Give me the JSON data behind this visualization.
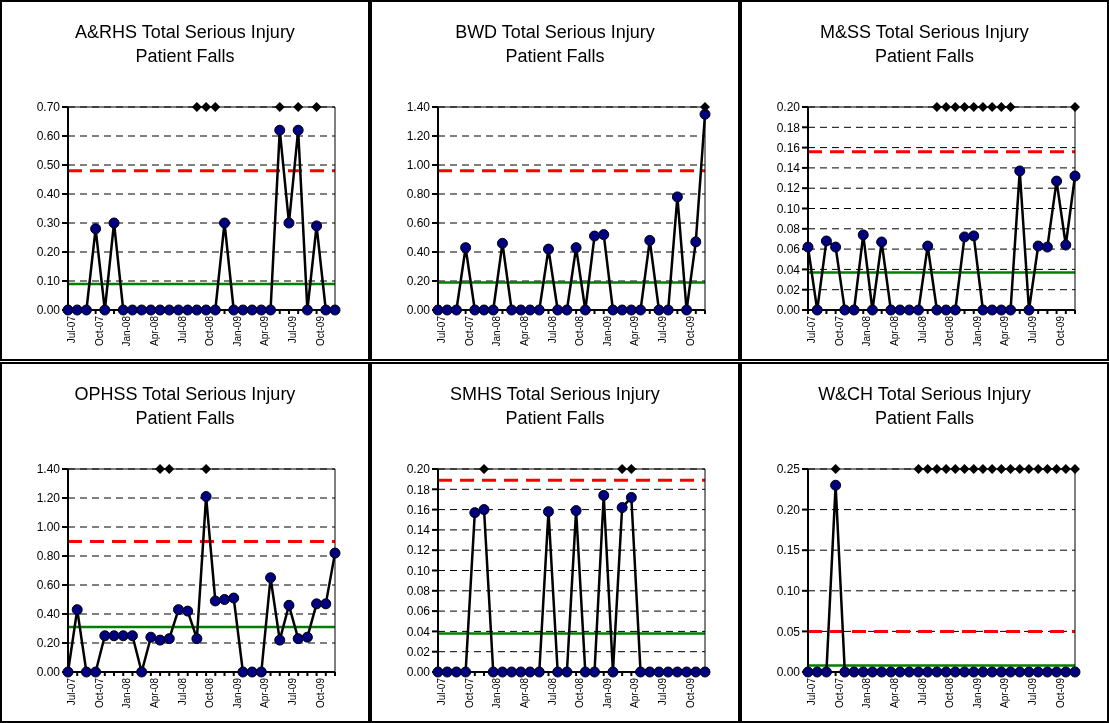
{
  "chart_data": [
    {
      "type": "line",
      "title": "A&RHS Total Serious Injury Patient Falls",
      "categories": [
        "Jul-07",
        null,
        null,
        "Oct-07",
        null,
        null,
        "Jan-08",
        null,
        null,
        "Apr-08",
        null,
        null,
        "Jul-08",
        null,
        null,
        "Oct-08",
        null,
        null,
        "Jan-09",
        null,
        null,
        "Apr-09",
        null,
        null,
        "Jul-09",
        null,
        null,
        "Oct-09",
        null,
        null
      ],
      "ylim": [
        0,
        0.7
      ],
      "yticks": [
        {
          "value": 0,
          "label": "0.00"
        },
        {
          "value": 0.1,
          "label": "0.10"
        },
        {
          "value": 0.2,
          "label": "0.20"
        },
        {
          "value": 0.3,
          "label": "0.30"
        },
        {
          "value": 0.4,
          "label": "0.40"
        },
        {
          "value": 0.5,
          "label": "0.50"
        },
        {
          "value": 0.6,
          "label": "0.60"
        },
        {
          "value": 0.7,
          "label": "0.70"
        }
      ],
      "grid": "y",
      "marker": "circle",
      "line_style": "solid",
      "series": [
        {
          "color": "#000000",
          "colors": [
            "#000080",
            "#000080",
            "#000080",
            "#000080",
            "#000080",
            "#000080",
            "#000080",
            "#000080",
            "#000080",
            "#000080",
            "#000080",
            "#000080",
            "#000080",
            "#000080",
            "#000080",
            "#000080",
            "#000080",
            "#000080",
            "#000080",
            "#000080",
            "#000080",
            "#000080",
            "#000080",
            "#000080",
            "#000080",
            "#000080",
            "#000080",
            "#000080",
            "#000080",
            "#000080"
          ],
          "values": [
            0,
            0,
            0,
            0.28,
            0,
            0.3,
            0,
            0,
            0,
            0,
            0,
            0,
            0,
            0,
            0,
            0,
            0,
            0.3,
            0,
            0,
            0,
            0,
            0,
            0.62,
            0.3,
            0.62,
            0,
            0.29,
            0,
            0
          ]
        },
        {
          "type": "scatter",
          "marker": "diamond",
          "color": "#000000",
          "values": [
            null,
            null,
            null,
            null,
            null,
            null,
            null,
            null,
            null,
            null,
            null,
            null,
            null,
            null,
            0.7,
            0.7,
            0.7,
            null,
            null,
            null,
            null,
            null,
            null,
            0.7,
            null,
            0.7,
            null,
            0.7,
            null,
            null
          ]
        }
      ],
      "ref_lines": [
        {
          "axis": "y",
          "value": 0.48,
          "color": "#ff0000",
          "line_style": "dashed"
        },
        {
          "axis": "y",
          "value": 0.09,
          "color": "#008000",
          "line_style": "solid"
        }
      ]
    },
    {
      "type": "line",
      "title": "BWD Total Serious Injury Patient Falls",
      "categories": [
        "Jul-07",
        null,
        null,
        "Oct-07",
        null,
        null,
        "Jan-08",
        null,
        null,
        "Apr-08",
        null,
        null,
        "Jul-08",
        null,
        null,
        "Oct-08",
        null,
        null,
        "Jan-09",
        null,
        null,
        "Apr-09",
        null,
        null,
        "Jul-09",
        null,
        null,
        "Oct-09",
        null,
        null
      ],
      "ylim": [
        0,
        1.4
      ],
      "yticks": [
        {
          "value": 0,
          "label": "0.00"
        },
        {
          "value": 0.2,
          "label": "0.20"
        },
        {
          "value": 0.4,
          "label": "0.40"
        },
        {
          "value": 0.6,
          "label": "0.60"
        },
        {
          "value": 0.8,
          "label": "0.80"
        },
        {
          "value": 1,
          "label": "1.00"
        },
        {
          "value": 1.2,
          "label": "1.20"
        },
        {
          "value": 1.4,
          "label": "1.40"
        }
      ],
      "grid": "y",
      "marker": "circle",
      "line_style": "solid",
      "series": [
        {
          "color": "#000000",
          "colors": [
            "#000080",
            "#000080",
            "#000080",
            "#000080",
            "#000080",
            "#000080",
            "#000080",
            "#000080",
            "#000080",
            "#000080",
            "#000080",
            "#000080",
            "#000080",
            "#000080",
            "#000080",
            "#000080",
            "#000080",
            "#000080",
            "#000080",
            "#000080",
            "#000080",
            "#000080",
            "#000080",
            "#000080",
            "#000080",
            "#000080",
            "#000080",
            "#000080",
            "#000080",
            "#000080"
          ],
          "values": [
            0,
            0,
            0,
            0.43,
            0,
            0,
            0,
            0.46,
            0,
            0,
            0,
            0,
            0.42,
            0,
            0,
            0.43,
            0,
            0.51,
            0.52,
            0,
            0,
            0,
            0,
            0.48,
            0,
            0,
            0.78,
            0,
            0.47,
            1.35
          ]
        },
        {
          "type": "scatter",
          "marker": "diamond",
          "color": "#000000",
          "values": [
            null,
            null,
            null,
            null,
            null,
            null,
            null,
            null,
            null,
            null,
            null,
            null,
            null,
            null,
            null,
            null,
            null,
            null,
            null,
            null,
            null,
            null,
            null,
            null,
            null,
            null,
            null,
            null,
            null,
            1.4
          ]
        }
      ],
      "ref_lines": [
        {
          "axis": "y",
          "value": 0.96,
          "color": "#ff0000",
          "line_style": "dashed"
        },
        {
          "axis": "y",
          "value": 0.19,
          "color": "#008000",
          "line_style": "solid"
        }
      ]
    },
    {
      "type": "line",
      "title": "M&SS Total Serious Injury Patient Falls",
      "categories": [
        "Jul-07",
        null,
        null,
        "Oct-07",
        null,
        null,
        "Jan-08",
        null,
        null,
        "Apr-08",
        null,
        null,
        "Jul-08",
        null,
        null,
        "Oct-08",
        null,
        null,
        "Jan-09",
        null,
        null,
        "Apr-09",
        null,
        null,
        "Jul-09",
        null,
        null,
        "Oct-09",
        null,
        null
      ],
      "ylim": [
        0,
        0.2
      ],
      "yticks": [
        {
          "value": 0,
          "label": "0.00"
        },
        {
          "value": 0.02,
          "label": "0.02"
        },
        {
          "value": 0.04,
          "label": "0.04"
        },
        {
          "value": 0.06,
          "label": "0.06"
        },
        {
          "value": 0.08,
          "label": "0.08"
        },
        {
          "value": 0.1,
          "label": "0.10"
        },
        {
          "value": 0.12,
          "label": "0.12"
        },
        {
          "value": 0.14,
          "label": "0.14"
        },
        {
          "value": 0.16,
          "label": "0.16"
        },
        {
          "value": 0.18,
          "label": "0.18"
        },
        {
          "value": 0.2,
          "label": "0.20"
        }
      ],
      "grid": "y",
      "marker": "circle",
      "line_style": "solid",
      "series": [
        {
          "color": "#000000",
          "colors": [
            "#000080",
            "#000080",
            "#000080",
            "#000080",
            "#000080",
            "#000080",
            "#000080",
            "#000080",
            "#000080",
            "#000080",
            "#000080",
            "#000080",
            "#000080",
            "#000080",
            "#000080",
            "#000080",
            "#000080",
            "#000080",
            "#000080",
            "#000080",
            "#000080",
            "#000080",
            "#000080",
            "#000080",
            "#000080",
            "#000080",
            "#000080",
            "#000080",
            "#000080",
            "#000080"
          ],
          "values": [
            0.062,
            0,
            0.068,
            0.062,
            0,
            0,
            0.074,
            0,
            0.067,
            0,
            0,
            0,
            0,
            0.063,
            0,
            0,
            0,
            0.072,
            0.073,
            0,
            0,
            0,
            0,
            0.137,
            0,
            0.063,
            0.062,
            0.127,
            0.064,
            0.132
          ]
        },
        {
          "type": "scatter",
          "marker": "diamond",
          "color": "#000000",
          "values": [
            null,
            null,
            null,
            null,
            null,
            null,
            null,
            null,
            null,
            null,
            null,
            null,
            null,
            null,
            0.2,
            0.2,
            0.2,
            0.2,
            0.2,
            0.2,
            0.2,
            0.2,
            0.2,
            null,
            null,
            null,
            null,
            null,
            null,
            0.2
          ]
        }
      ],
      "ref_lines": [
        {
          "axis": "y",
          "value": 0.156,
          "color": "#ff0000",
          "line_style": "dashed"
        },
        {
          "axis": "y",
          "value": 0.037,
          "color": "#008000",
          "line_style": "solid"
        }
      ]
    },
    {
      "type": "line",
      "title": "OPHSS Total Serious Injury Patient Falls",
      "categories": [
        "Jul-07",
        null,
        null,
        "Oct-07",
        null,
        null,
        "Jan-08",
        null,
        null,
        "Apr-08",
        null,
        null,
        "Jul-08",
        null,
        null,
        "Oct-08",
        null,
        null,
        "Jan-09",
        null,
        null,
        "Apr-09",
        null,
        null,
        "Jul-09",
        null,
        null,
        "Oct-09",
        null,
        null
      ],
      "ylim": [
        0,
        1.4
      ],
      "yticks": [
        {
          "value": 0,
          "label": "0.00"
        },
        {
          "value": 0.2,
          "label": "0.20"
        },
        {
          "value": 0.4,
          "label": "0.40"
        },
        {
          "value": 0.6,
          "label": "0.60"
        },
        {
          "value": 0.8,
          "label": "0.80"
        },
        {
          "value": 1,
          "label": "1.00"
        },
        {
          "value": 1.2,
          "label": "1.20"
        },
        {
          "value": 1.4,
          "label": "1.40"
        }
      ],
      "grid": "y",
      "marker": "circle",
      "line_style": "solid",
      "series": [
        {
          "color": "#000000",
          "colors": [
            "#000080",
            "#000080",
            "#000080",
            "#000080",
            "#000080",
            "#000080",
            "#000080",
            "#000080",
            "#000080",
            "#000080",
            "#000080",
            "#000080",
            "#000080",
            "#000080",
            "#000080",
            "#000080",
            "#000080",
            "#000080",
            "#000080",
            "#000080",
            "#000080",
            "#000080",
            "#000080",
            "#000080",
            "#000080",
            "#000080",
            "#000080",
            "#000080",
            "#000080",
            "#000080"
          ],
          "values": [
            0,
            0.43,
            0,
            0,
            0.25,
            0.25,
            0.25,
            0.25,
            0,
            0.24,
            0.22,
            0.23,
            0.43,
            0.42,
            0.23,
            1.21,
            0.49,
            0.5,
            0.51,
            0,
            0,
            0,
            0.65,
            0.22,
            0.46,
            0.23,
            0.24,
            0.47,
            0.47,
            0.82
          ]
        },
        {
          "type": "scatter",
          "marker": "diamond",
          "color": "#000000",
          "values": [
            null,
            null,
            null,
            null,
            null,
            null,
            null,
            null,
            null,
            null,
            1.4,
            1.4,
            null,
            null,
            null,
            1.4,
            null,
            null,
            null,
            null,
            null,
            null,
            null,
            null,
            null,
            null,
            null,
            null,
            null,
            null
          ]
        }
      ],
      "ref_lines": [
        {
          "axis": "y",
          "value": 0.9,
          "color": "#ff0000",
          "line_style": "dashed"
        },
        {
          "axis": "y",
          "value": 0.31,
          "color": "#008000",
          "line_style": "solid"
        }
      ]
    },
    {
      "type": "line",
      "title": "SMHS Total Serious Injury Patient Falls",
      "categories": [
        "Jul-07",
        null,
        null,
        "Oct-07",
        null,
        null,
        "Jan-08",
        null,
        null,
        "Apr-08",
        null,
        null,
        "Jul-08",
        null,
        null,
        "Oct-08",
        null,
        null,
        "Jan-09",
        null,
        null,
        "Apr-09",
        null,
        null,
        "Jul-09",
        null,
        null,
        "Oct-09",
        null,
        null
      ],
      "ylim": [
        0,
        0.2
      ],
      "yticks": [
        {
          "value": 0,
          "label": "0.00"
        },
        {
          "value": 0.02,
          "label": "0.02"
        },
        {
          "value": 0.04,
          "label": "0.04"
        },
        {
          "value": 0.06,
          "label": "0.06"
        },
        {
          "value": 0.08,
          "label": "0.08"
        },
        {
          "value": 0.1,
          "label": "0.10"
        },
        {
          "value": 0.12,
          "label": "0.12"
        },
        {
          "value": 0.14,
          "label": "0.14"
        },
        {
          "value": 0.16,
          "label": "0.16"
        },
        {
          "value": 0.18,
          "label": "0.18"
        },
        {
          "value": 0.2,
          "label": "0.20"
        }
      ],
      "grid": "y",
      "marker": "circle",
      "line_style": "solid",
      "series": [
        {
          "color": "#000000",
          "colors": [
            "#000080",
            "#000080",
            "#000080",
            "#000080",
            "#000080",
            "#000080",
            "#000080",
            "#000080",
            "#000080",
            "#000080",
            "#000080",
            "#000080",
            "#000080",
            "#000080",
            "#000080",
            "#000080",
            "#000080",
            "#000080",
            "#000080",
            "#000080",
            "#000080",
            "#000080",
            "#000080",
            "#000080",
            "#000080",
            "#000080",
            "#000080",
            "#000080",
            "#000080",
            "#000080"
          ],
          "values": [
            0,
            0,
            0,
            0,
            0.157,
            0.16,
            0,
            0,
            0,
            0,
            0,
            0,
            0.158,
            0,
            0,
            0.159,
            0,
            0,
            0.174,
            0,
            0.162,
            0.172,
            0,
            0,
            0,
            0,
            0,
            0,
            0,
            0
          ]
        },
        {
          "type": "scatter",
          "marker": "diamond",
          "color": "#000000",
          "values": [
            null,
            null,
            null,
            null,
            null,
            0.2,
            null,
            null,
            null,
            null,
            null,
            null,
            null,
            null,
            null,
            null,
            null,
            null,
            null,
            null,
            0.2,
            0.2,
            null,
            null,
            null,
            null,
            null,
            null,
            null,
            null
          ]
        }
      ],
      "ref_lines": [
        {
          "axis": "y",
          "value": 0.189,
          "color": "#ff0000",
          "line_style": "dashed"
        },
        {
          "axis": "y",
          "value": 0.038,
          "color": "#008000",
          "line_style": "solid"
        }
      ]
    },
    {
      "type": "line",
      "title": "W&CH Total Serious Injury Patient Falls",
      "categories": [
        "Jul-07",
        null,
        null,
        "Oct-07",
        null,
        null,
        "Jan-08",
        null,
        null,
        "Apr-08",
        null,
        null,
        "Jul-08",
        null,
        null,
        "Oct-08",
        null,
        null,
        "Jan-09",
        null,
        null,
        "Apr-09",
        null,
        null,
        "Jul-09",
        null,
        null,
        "Oct-09",
        null,
        null
      ],
      "ylim": [
        0,
        0.25
      ],
      "yticks": [
        {
          "value": 0,
          "label": "0.00"
        },
        {
          "value": 0.05,
          "label": "0.05"
        },
        {
          "value": 0.1,
          "label": "0.10"
        },
        {
          "value": 0.15,
          "label": "0.15"
        },
        {
          "value": 0.2,
          "label": "0.20"
        },
        {
          "value": 0.25,
          "label": "0.25"
        }
      ],
      "grid": "y",
      "marker": "circle",
      "line_style": "solid",
      "series": [
        {
          "color": "#000000",
          "colors": [
            "#000080",
            "#000080",
            "#000080",
            "#000080",
            "#000080",
            "#000080",
            "#000080",
            "#000080",
            "#000080",
            "#000080",
            "#000080",
            "#000080",
            "#000080",
            "#000080",
            "#000080",
            "#000080",
            "#000080",
            "#000080",
            "#000080",
            "#000080",
            "#000080",
            "#000080",
            "#000080",
            "#000080",
            "#000080",
            "#000080",
            "#000080",
            "#000080",
            "#000080",
            "#000080"
          ],
          "values": [
            0,
            0,
            0,
            0.23,
            0,
            0,
            0,
            0,
            0,
            0,
            0,
            0,
            0,
            0,
            0,
            0,
            0,
            0,
            0,
            0,
            0,
            0,
            0,
            0,
            0,
            0,
            0,
            0,
            0,
            0
          ]
        },
        {
          "type": "scatter",
          "marker": "diamond",
          "color": "#000000",
          "values": [
            null,
            null,
            null,
            0.25,
            null,
            null,
            null,
            null,
            null,
            null,
            null,
            null,
            0.25,
            0.25,
            0.25,
            0.25,
            0.25,
            0.25,
            0.25,
            0.25,
            0.25,
            0.25,
            0.25,
            0.25,
            0.25,
            0.25,
            0.25,
            0.25,
            0.25,
            0.25
          ]
        }
      ],
      "ref_lines": [
        {
          "axis": "y",
          "value": 0.05,
          "color": "#ff0000",
          "line_style": "dashed"
        },
        {
          "axis": "y",
          "value": 0.008,
          "color": "#008000",
          "line_style": "solid"
        }
      ]
    }
  ]
}
